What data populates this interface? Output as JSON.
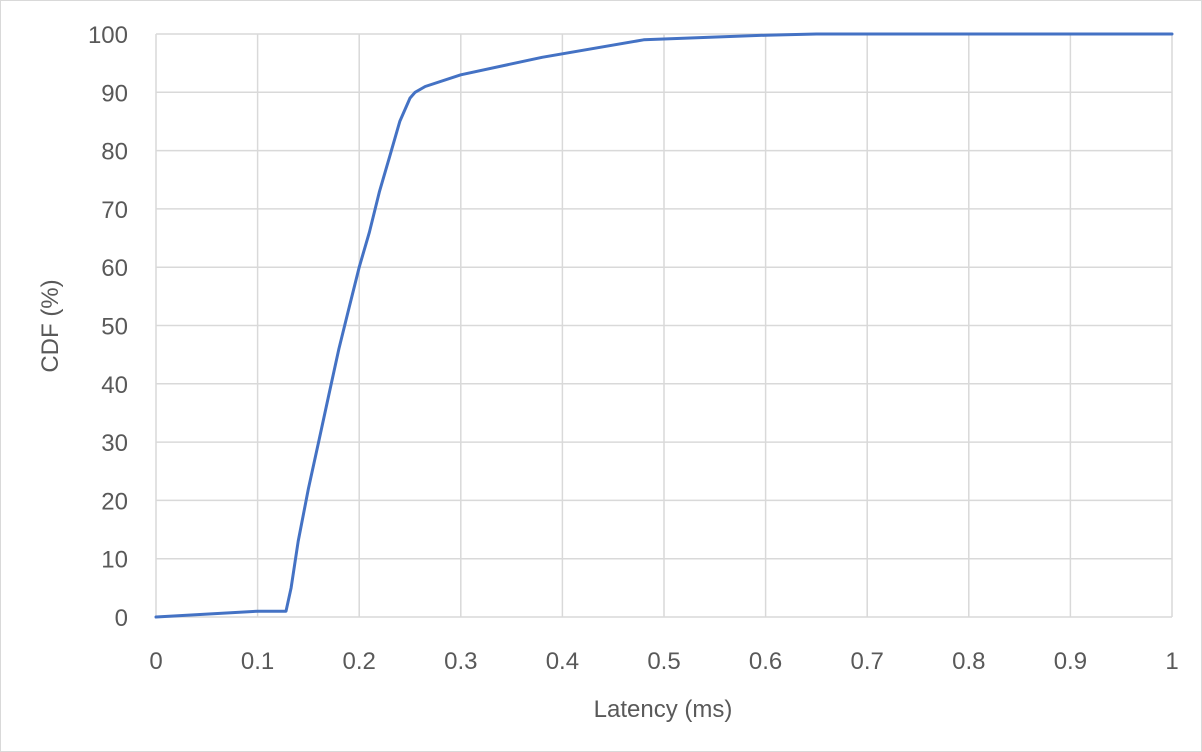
{
  "chart_data": {
    "type": "line",
    "title": "",
    "xlabel": "Latency (ms)",
    "ylabel": "CDF (%)",
    "xlim": [
      0,
      1
    ],
    "ylim": [
      0,
      100
    ],
    "x_ticks": [
      "0",
      "0.1",
      "0.2",
      "0.3",
      "0.4",
      "0.5",
      "0.6",
      "0.7",
      "0.8",
      "0.9",
      "1"
    ],
    "y_ticks": [
      "0",
      "10",
      "20",
      "30",
      "40",
      "50",
      "60",
      "70",
      "80",
      "90",
      "100"
    ],
    "grid": true,
    "legend": "none",
    "colors": {
      "line": "#4472C4",
      "grid": "#d9d9d9",
      "text": "#595959"
    },
    "series": [
      {
        "x": [
          0,
          0.1,
          0.128,
          0.133,
          0.14,
          0.15,
          0.16,
          0.17,
          0.18,
          0.19,
          0.2,
          0.21,
          0.22,
          0.23,
          0.24,
          0.25,
          0.255,
          0.265,
          0.3,
          0.38,
          0.48,
          0.6,
          0.65,
          1.0
        ],
        "y": [
          0,
          1,
          1,
          5,
          13,
          22,
          30,
          38,
          46,
          53,
          60,
          66,
          73,
          79,
          85,
          89,
          90,
          91,
          93,
          96,
          99,
          99.8,
          100,
          100
        ]
      }
    ]
  }
}
